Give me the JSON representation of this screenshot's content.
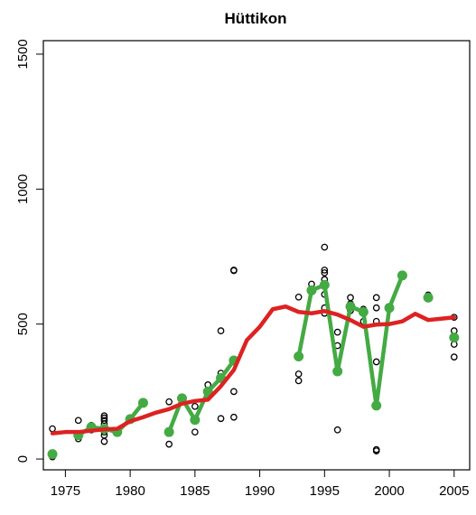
{
  "chart_data": {
    "type": "line",
    "title": "Hüttikon",
    "xlabel": "",
    "ylabel": "",
    "xlim": [
      1973.3,
      2006.2
    ],
    "ylim": [
      -40,
      1550
    ],
    "x_ticks": [
      1975,
      1980,
      1985,
      1990,
      1995,
      2000,
      2005
    ],
    "y_ticks": [
      0,
      500,
      1000,
      1500
    ],
    "grid": false,
    "legend": "none",
    "colors": {
      "smooth": "#dd2222",
      "annual": "#44aa44",
      "points": "#000000"
    },
    "points": [
      {
        "x": 1974,
        "y": 8
      },
      {
        "x": 1974,
        "y": 112
      },
      {
        "x": 1976,
        "y": 75
      },
      {
        "x": 1976,
        "y": 88
      },
      {
        "x": 1976,
        "y": 143
      },
      {
        "x": 1977,
        "y": 108
      },
      {
        "x": 1977,
        "y": 125
      },
      {
        "x": 1978,
        "y": 65
      },
      {
        "x": 1978,
        "y": 88
      },
      {
        "x": 1978,
        "y": 100
      },
      {
        "x": 1978,
        "y": 112
      },
      {
        "x": 1978,
        "y": 130
      },
      {
        "x": 1978,
        "y": 143
      },
      {
        "x": 1978,
        "y": 152
      },
      {
        "x": 1978,
        "y": 160
      },
      {
        "x": 1979,
        "y": 100
      },
      {
        "x": 1983,
        "y": 55
      },
      {
        "x": 1983,
        "y": 212
      },
      {
        "x": 1985,
        "y": 100
      },
      {
        "x": 1985,
        "y": 195
      },
      {
        "x": 1986,
        "y": 275
      },
      {
        "x": 1987,
        "y": 150
      },
      {
        "x": 1987,
        "y": 318
      },
      {
        "x": 1987,
        "y": 475
      },
      {
        "x": 1988,
        "y": 155
      },
      {
        "x": 1988,
        "y": 250
      },
      {
        "x": 1988,
        "y": 698
      },
      {
        "x": 1988,
        "y": 700
      },
      {
        "x": 1993,
        "y": 290
      },
      {
        "x": 1993,
        "y": 315
      },
      {
        "x": 1993,
        "y": 600
      },
      {
        "x": 1994,
        "y": 630
      },
      {
        "x": 1994,
        "y": 648
      },
      {
        "x": 1995,
        "y": 540
      },
      {
        "x": 1995,
        "y": 560
      },
      {
        "x": 1995,
        "y": 610
      },
      {
        "x": 1995,
        "y": 650
      },
      {
        "x": 1995,
        "y": 665
      },
      {
        "x": 1995,
        "y": 690
      },
      {
        "x": 1995,
        "y": 700
      },
      {
        "x": 1995,
        "y": 785
      },
      {
        "x": 1996,
        "y": 108
      },
      {
        "x": 1996,
        "y": 420
      },
      {
        "x": 1996,
        "y": 470
      },
      {
        "x": 1997,
        "y": 550
      },
      {
        "x": 1997,
        "y": 575
      },
      {
        "x": 1997,
        "y": 598
      },
      {
        "x": 1998,
        "y": 510
      },
      {
        "x": 1998,
        "y": 555
      },
      {
        "x": 1999,
        "y": 30
      },
      {
        "x": 1999,
        "y": 35
      },
      {
        "x": 1999,
        "y": 360
      },
      {
        "x": 1999,
        "y": 510
      },
      {
        "x": 1999,
        "y": 560
      },
      {
        "x": 1999,
        "y": 598
      },
      {
        "x": 2003,
        "y": 608
      },
      {
        "x": 2005,
        "y": 378
      },
      {
        "x": 2005,
        "y": 425
      },
      {
        "x": 2005,
        "y": 475
      },
      {
        "x": 2005,
        "y": 525
      }
    ],
    "series": [
      {
        "segments": [
          [
            {
              "x": 1974,
              "y": 18
            }
          ],
          [
            {
              "x": 1976,
              "y": 88
            },
            {
              "x": 1977,
              "y": 118
            },
            {
              "x": 1978,
              "y": 112
            },
            {
              "x": 1979,
              "y": 100
            },
            {
              "x": 1980,
              "y": 148
            },
            {
              "x": 1981,
              "y": 208
            }
          ],
          [
            {
              "x": 1983,
              "y": 100
            },
            {
              "x": 1984,
              "y": 225
            },
            {
              "x": 1985,
              "y": 145
            },
            {
              "x": 1986,
              "y": 250
            },
            {
              "x": 1987,
              "y": 300
            },
            {
              "x": 1988,
              "y": 365
            }
          ],
          [
            {
              "x": 1993,
              "y": 380
            },
            {
              "x": 1994,
              "y": 625
            },
            {
              "x": 1995,
              "y": 645
            },
            {
              "x": 1996,
              "y": 325
            },
            {
              "x": 1997,
              "y": 565
            },
            {
              "x": 1998,
              "y": 545
            },
            {
              "x": 1999,
              "y": 198
            },
            {
              "x": 2000,
              "y": 560
            },
            {
              "x": 2001,
              "y": 680
            }
          ],
          [
            {
              "x": 2003,
              "y": 598
            }
          ],
          [
            {
              "x": 2005,
              "y": 450
            }
          ]
        ]
      },
      {
        "values": [
          {
            "x": 1974,
            "y": 95
          },
          {
            "x": 1975,
            "y": 100
          },
          {
            "x": 1976,
            "y": 100
          },
          {
            "x": 1977,
            "y": 105
          },
          {
            "x": 1978,
            "y": 110
          },
          {
            "x": 1979,
            "y": 112
          },
          {
            "x": 1980,
            "y": 140
          },
          {
            "x": 1981,
            "y": 155
          },
          {
            "x": 1982,
            "y": 172
          },
          {
            "x": 1983,
            "y": 185
          },
          {
            "x": 1984,
            "y": 205
          },
          {
            "x": 1985,
            "y": 215
          },
          {
            "x": 1986,
            "y": 220
          },
          {
            "x": 1987,
            "y": 270
          },
          {
            "x": 1988,
            "y": 330
          },
          {
            "x": 1989,
            "y": 440
          },
          {
            "x": 1990,
            "y": 490
          },
          {
            "x": 1991,
            "y": 555
          },
          {
            "x": 1992,
            "y": 565
          },
          {
            "x": 1993,
            "y": 545
          },
          {
            "x": 1994,
            "y": 540
          },
          {
            "x": 1995,
            "y": 548
          },
          {
            "x": 1996,
            "y": 535
          },
          {
            "x": 1997,
            "y": 515
          },
          {
            "x": 1998,
            "y": 490
          },
          {
            "x": 1999,
            "y": 498
          },
          {
            "x": 2000,
            "y": 500
          },
          {
            "x": 2001,
            "y": 510
          },
          {
            "x": 2002,
            "y": 538
          },
          {
            "x": 2003,
            "y": 515
          },
          {
            "x": 2004,
            "y": 520
          },
          {
            "x": 2005,
            "y": 525
          }
        ]
      }
    ]
  }
}
